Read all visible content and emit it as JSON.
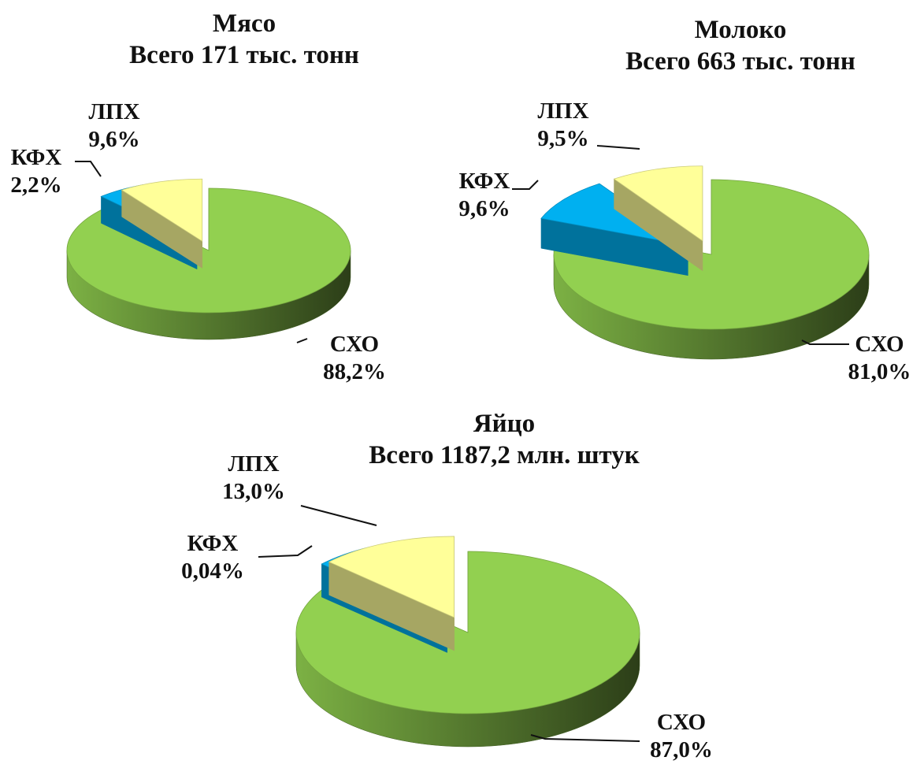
{
  "colors": {
    "СХО": "#92d050",
    "КФХ": "#00b0f0",
    "ЛПХ": "#ffff99"
  },
  "chart_data": [
    {
      "type": "pie",
      "title": "Мясо",
      "subtitle": "Всего 171 тыс. тонн",
      "categories": [
        "СХО",
        "КФХ",
        "ЛПХ"
      ],
      "values": [
        88.2,
        2.2,
        9.6
      ],
      "labels": [
        {
          "name": "СХО",
          "value": "88,2%"
        },
        {
          "name": "КФХ",
          "value": "2,2%"
        },
        {
          "name": "ЛПХ",
          "value": "9,6%"
        }
      ]
    },
    {
      "type": "pie",
      "title": "Молоко",
      "subtitle": "Всего 663 тыс. тонн",
      "categories": [
        "СХО",
        "КФХ",
        "ЛПХ"
      ],
      "values": [
        81.0,
        9.6,
        9.5
      ],
      "labels": [
        {
          "name": "СХО",
          "value": "81,0%"
        },
        {
          "name": "КФХ",
          "value": "9,6%"
        },
        {
          "name": "ЛПХ",
          "value": "9,5%"
        }
      ]
    },
    {
      "type": "pie",
      "title": "Яйцо",
      "subtitle": "Всего 1187,2 млн. штук",
      "categories": [
        "СХО",
        "КФХ",
        "ЛПХ"
      ],
      "values": [
        87.0,
        0.04,
        13.0
      ],
      "labels": [
        {
          "name": "СХО",
          "value": "87,0%"
        },
        {
          "name": "КФХ",
          "value": "0,04%"
        },
        {
          "name": "ЛПХ",
          "value": "13,0%"
        }
      ]
    }
  ]
}
